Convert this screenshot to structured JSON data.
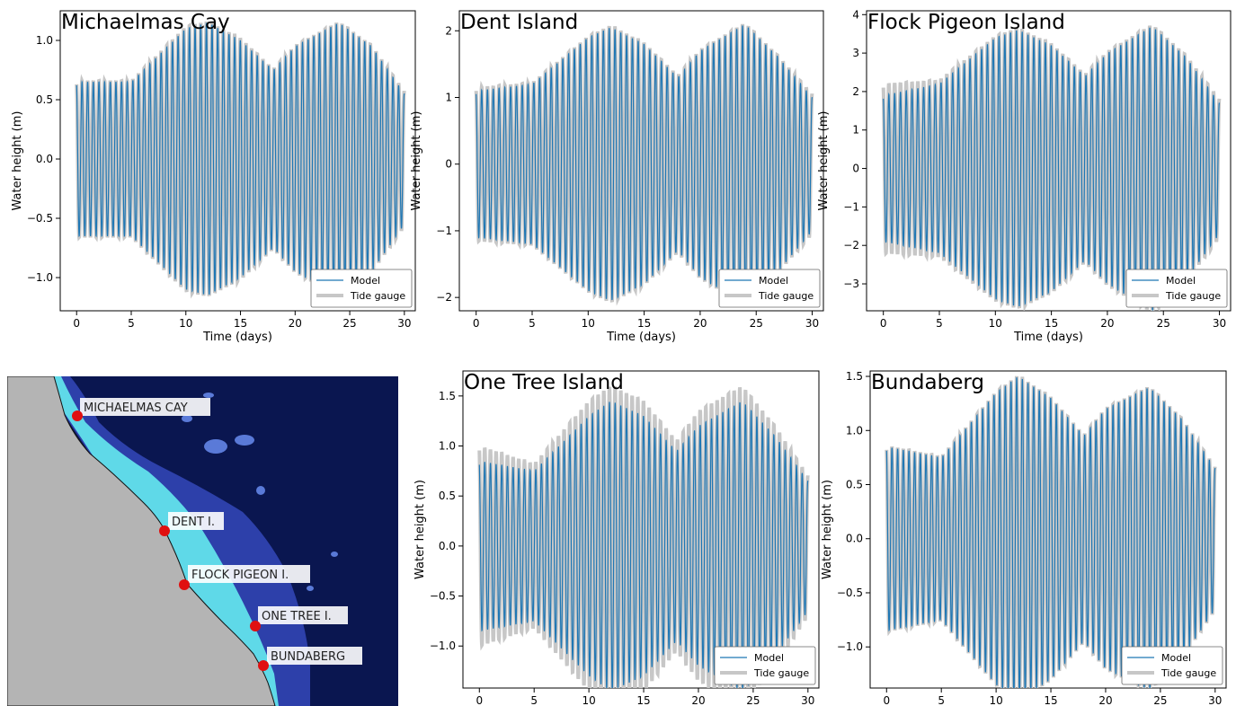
{
  "chart_data": [
    {
      "type": "line",
      "title": "Michaelmas Cay",
      "xlabel": "Time (days)",
      "ylabel": "Water height (m)",
      "xlim": [
        -1.5,
        31
      ],
      "ylim": [
        -1.28,
        1.25
      ],
      "xticks": [
        "0",
        "5",
        "10",
        "15",
        "20",
        "25",
        "30"
      ],
      "yticks": [
        "−1.0",
        "−0.5",
        "0.0",
        "0.5",
        "1.0"
      ],
      "legend_position": "lower-right",
      "series": [
        {
          "name": "Model",
          "color": "#1f77b4",
          "envelope_days": [
            0,
            5,
            10,
            12,
            15,
            18,
            20,
            24,
            27,
            30
          ],
          "envelope_amplitude": [
            0.65,
            0.65,
            1.1,
            1.15,
            1.0,
            0.75,
            0.95,
            1.15,
            0.95,
            0.55
          ]
        },
        {
          "name": "Tide gauge",
          "color": "#c7c7c7",
          "envelope_days": [
            0,
            5,
            10,
            12,
            15,
            18,
            20,
            24,
            27,
            30
          ],
          "envelope_amplitude": [
            0.66,
            0.66,
            1.12,
            1.16,
            1.02,
            0.76,
            0.96,
            1.16,
            0.96,
            0.57
          ]
        }
      ]
    },
    {
      "type": "line",
      "title": "Dent Island",
      "xlabel": "Time (days)",
      "ylabel": "Water height (m)",
      "xlim": [
        -1.5,
        31
      ],
      "ylim": [
        -2.2,
        2.3
      ],
      "xticks": [
        "0",
        "5",
        "10",
        "15",
        "20",
        "25",
        "30"
      ],
      "yticks": [
        "−2",
        "−1",
        "0",
        "1",
        "2"
      ],
      "legend_position": "lower-right",
      "series": [
        {
          "name": "Model",
          "color": "#1f77b4",
          "envelope_days": [
            0,
            5,
            10,
            12,
            15,
            18,
            20,
            24,
            27,
            30
          ],
          "envelope_amplitude": [
            1.1,
            1.2,
            1.9,
            2.05,
            1.8,
            1.3,
            1.7,
            2.1,
            1.6,
            1.0
          ]
        },
        {
          "name": "Tide gauge",
          "color": "#c7c7c7",
          "envelope_days": [
            0,
            5,
            10,
            12,
            15,
            18,
            20,
            24,
            27,
            30
          ],
          "envelope_amplitude": [
            1.15,
            1.22,
            1.92,
            2.08,
            1.82,
            1.33,
            1.72,
            2.12,
            1.62,
            1.05
          ]
        }
      ]
    },
    {
      "type": "line",
      "title": "Flock Pigeon Island",
      "xlabel": "Time (days)",
      "ylabel": "Water height (m)",
      "xlim": [
        -1.5,
        31
      ],
      "ylim": [
        -3.7,
        4.1
      ],
      "xticks": [
        "0",
        "5",
        "10",
        "15",
        "20",
        "25",
        "30"
      ],
      "yticks": [
        "−3",
        "−2",
        "−1",
        "0",
        "1",
        "2",
        "3",
        "4"
      ],
      "legend_position": "lower-right",
      "series": [
        {
          "name": "Model",
          "color": "#1f77b4",
          "envelope_days": [
            0,
            5,
            10,
            12,
            15,
            18,
            20,
            24,
            27,
            30
          ],
          "envelope_amplitude": [
            1.9,
            2.2,
            3.4,
            3.6,
            3.2,
            2.4,
            3.0,
            3.7,
            2.9,
            1.7
          ]
        },
        {
          "name": "Tide gauge",
          "color": "#c7c7c7",
          "envelope_days": [
            0,
            5,
            10,
            12,
            15,
            18,
            20,
            24,
            27,
            30
          ],
          "envelope_amplitude": [
            2.2,
            2.3,
            3.45,
            3.65,
            3.25,
            2.45,
            3.05,
            3.75,
            2.95,
            1.8
          ]
        }
      ]
    },
    {
      "type": "line",
      "title": "One Tree Island",
      "xlabel": "Time (days)",
      "ylabel": "Water height (m)",
      "xlim": [
        -1.5,
        31
      ],
      "ylim": [
        -1.42,
        1.75
      ],
      "xticks": [
        "0",
        "5",
        "10",
        "15",
        "20",
        "25",
        "30"
      ],
      "yticks": [
        "−1.0",
        "−0.5",
        "0.0",
        "0.5",
        "1.0",
        "1.5"
      ],
      "legend_position": "lower-right",
      "series": [
        {
          "name": "Model",
          "color": "#1f77b4",
          "envelope_days": [
            0,
            5,
            10,
            12,
            15,
            18,
            20,
            24,
            27,
            30
          ],
          "envelope_amplitude": [
            0.85,
            0.75,
            1.3,
            1.45,
            1.3,
            0.95,
            1.2,
            1.45,
            1.1,
            0.65
          ]
        },
        {
          "name": "Tide gauge",
          "color": "#c7c7c7",
          "envelope_days": [
            0,
            5,
            10,
            12,
            15,
            18,
            20,
            24,
            27,
            30
          ],
          "envelope_amplitude": [
            1.0,
            0.82,
            1.45,
            1.6,
            1.45,
            1.05,
            1.35,
            1.6,
            1.2,
            0.7
          ]
        }
      ]
    },
    {
      "type": "line",
      "title": "Bundaberg",
      "xlabel": "Time (days)",
      "ylabel": "Water height (m)",
      "xlim": [
        -1.5,
        31
      ],
      "ylim": [
        -1.38,
        1.55
      ],
      "xticks": [
        "0",
        "5",
        "10",
        "15",
        "20",
        "25",
        "30"
      ],
      "yticks": [
        "−1.0",
        "−0.5",
        "0.0",
        "0.5",
        "1.0",
        "1.5"
      ],
      "legend_position": "lower-right",
      "series": [
        {
          "name": "Model",
          "color": "#1f77b4",
          "envelope_days": [
            0,
            5,
            10,
            12,
            15,
            18,
            20,
            24,
            27,
            30
          ],
          "envelope_amplitude": [
            0.85,
            0.75,
            1.35,
            1.5,
            1.3,
            0.95,
            1.2,
            1.4,
            1.1,
            0.65
          ]
        },
        {
          "name": "Tide gauge",
          "color": "#c7c7c7",
          "envelope_days": [
            0,
            5,
            10,
            12,
            15,
            18,
            20,
            24,
            27,
            30
          ],
          "envelope_amplitude": [
            0.86,
            0.76,
            1.36,
            1.51,
            1.31,
            0.96,
            1.21,
            1.41,
            1.11,
            0.66
          ]
        }
      ]
    }
  ],
  "map": {
    "labels": [
      "MICHAELMAS CAY",
      "DENT I.",
      "FLOCK PIGEON I.",
      "ONE TREE I.",
      "BUNDABERG"
    ],
    "colors": {
      "land": "#b4b4b4",
      "ocean": "#0a1650",
      "shelf": "#3a4fc8",
      "reef": "#5fd9e8",
      "site": "#e01010"
    }
  }
}
